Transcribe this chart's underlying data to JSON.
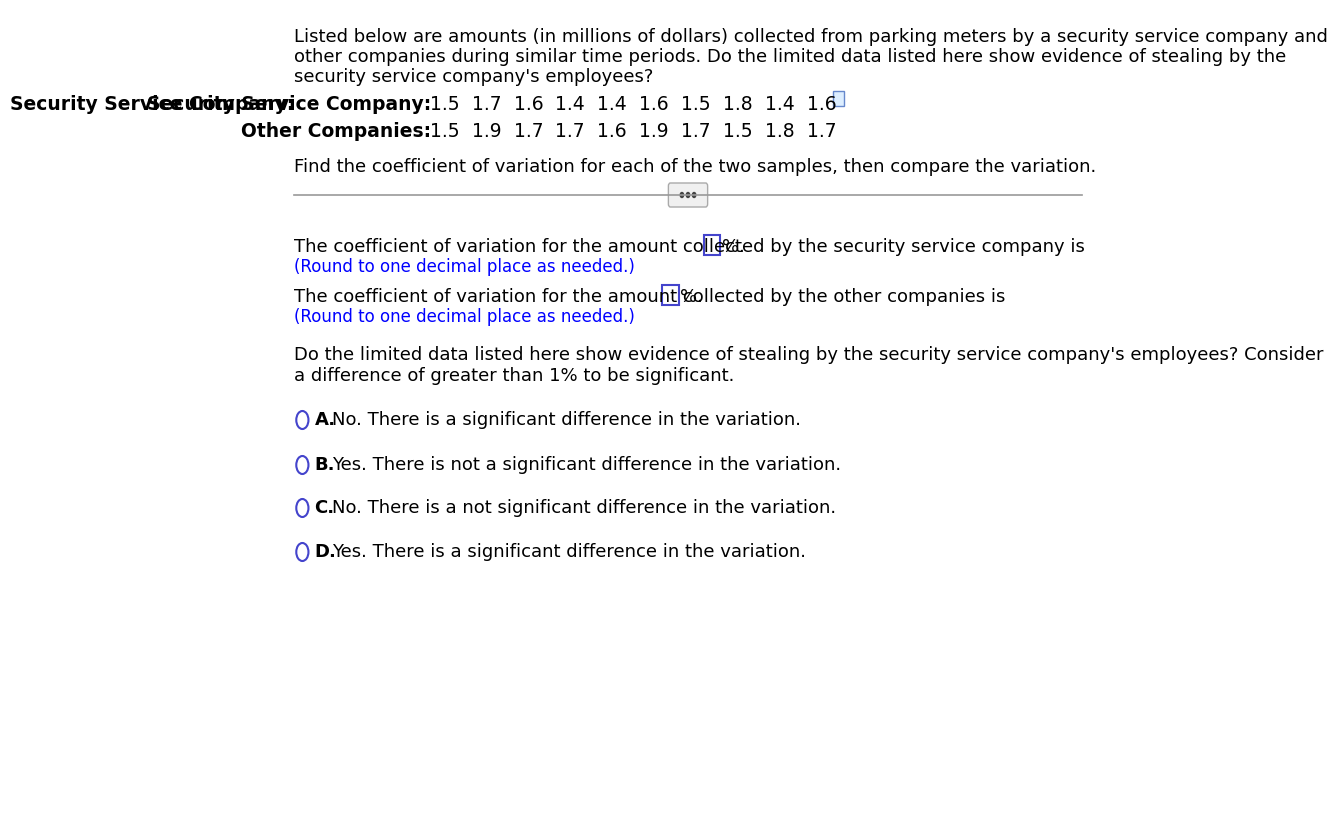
{
  "bg_color": "#ffffff",
  "text_color": "#000000",
  "blue_color": "#0000ff",
  "bold_blue_color": "#0000cc",
  "intro_text": "Listed below are amounts (in millions of dollars) collected from parking meters by a security service company and\nother companies during similar time periods. Do the limited data listed here show evidence of stealing by the\nsecurity service company's employees?",
  "label_security": "Security Service Company:",
  "label_other": "Other Companies:",
  "security_values": [
    "1.5",
    "1.7",
    "1.6",
    "1.4",
    "1.4",
    "1.6",
    "1.5",
    "1.8",
    "1.4",
    "1.6"
  ],
  "other_values": [
    "1.5",
    "1.9",
    "1.7",
    "1.7",
    "1.6",
    "1.9",
    "1.7",
    "1.5",
    "1.8",
    "1.7"
  ],
  "find_text": "Find the coefficient of variation for each of the two samples, then compare the variation.",
  "cv_security_text1": "The coefficient of variation for the amount collected by the security service company is",
  "cv_security_text2": "%.",
  "cv_security_note": "(Round to one decimal place as needed.)",
  "cv_other_text1": "The coefficient of variation for the amount collected by the other companies is",
  "cv_other_text2": "%.",
  "cv_other_note": "(Round to one decimal place as needed.)",
  "question_text": "Do the limited data listed here show evidence of stealing by the security service company's employees? Consider\na difference of greater than 1% to be significant.",
  "option_A_letter": "A.",
  "option_A_text": "No. There is a significant difference in the variation.",
  "option_B_letter": "B.",
  "option_B_text": "Yes. There is not a significant difference in the variation.",
  "option_C_letter": "C.",
  "option_C_text": "No. There is a not significant difference in the variation.",
  "option_D_letter": "D.",
  "option_D_text": "Yes. There is a significant difference in the variation.",
  "circle_color": "#4444cc",
  "box_color": "#4444cc",
  "separator_color": "#999999",
  "dots_button_color": "#dddddd"
}
